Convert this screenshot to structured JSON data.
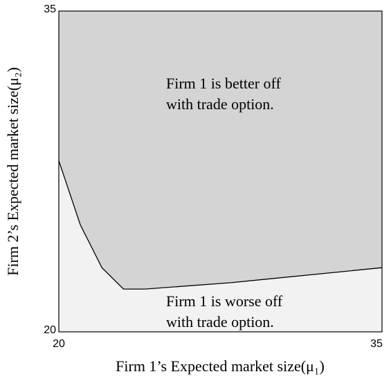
{
  "chart_data": {
    "type": "region",
    "x_label": "Firm 1’s Expected market size(μ₁)",
    "y_label": "Firm 2’s Expected market size(μ₂)",
    "xlim": [
      20,
      35
    ],
    "ylim": [
      20,
      35
    ],
    "xticks": [
      20,
      35
    ],
    "yticks": [
      20,
      35
    ],
    "grid": false,
    "upper_fill": "#d4d4d4",
    "lower_fill": "#f2f2f2",
    "x": [
      20,
      21,
      22,
      23,
      24,
      28,
      35
    ],
    "series": [
      {
        "color": "#000000",
        "values": [
          28,
          25,
          23,
          22,
          22,
          22.3,
          23
        ]
      }
    ],
    "annotations": [
      [
        "Firm 1 is better off",
        "with trade option."
      ],
      [
        "Firm 1 is worse off",
        "with trade option."
      ]
    ]
  }
}
